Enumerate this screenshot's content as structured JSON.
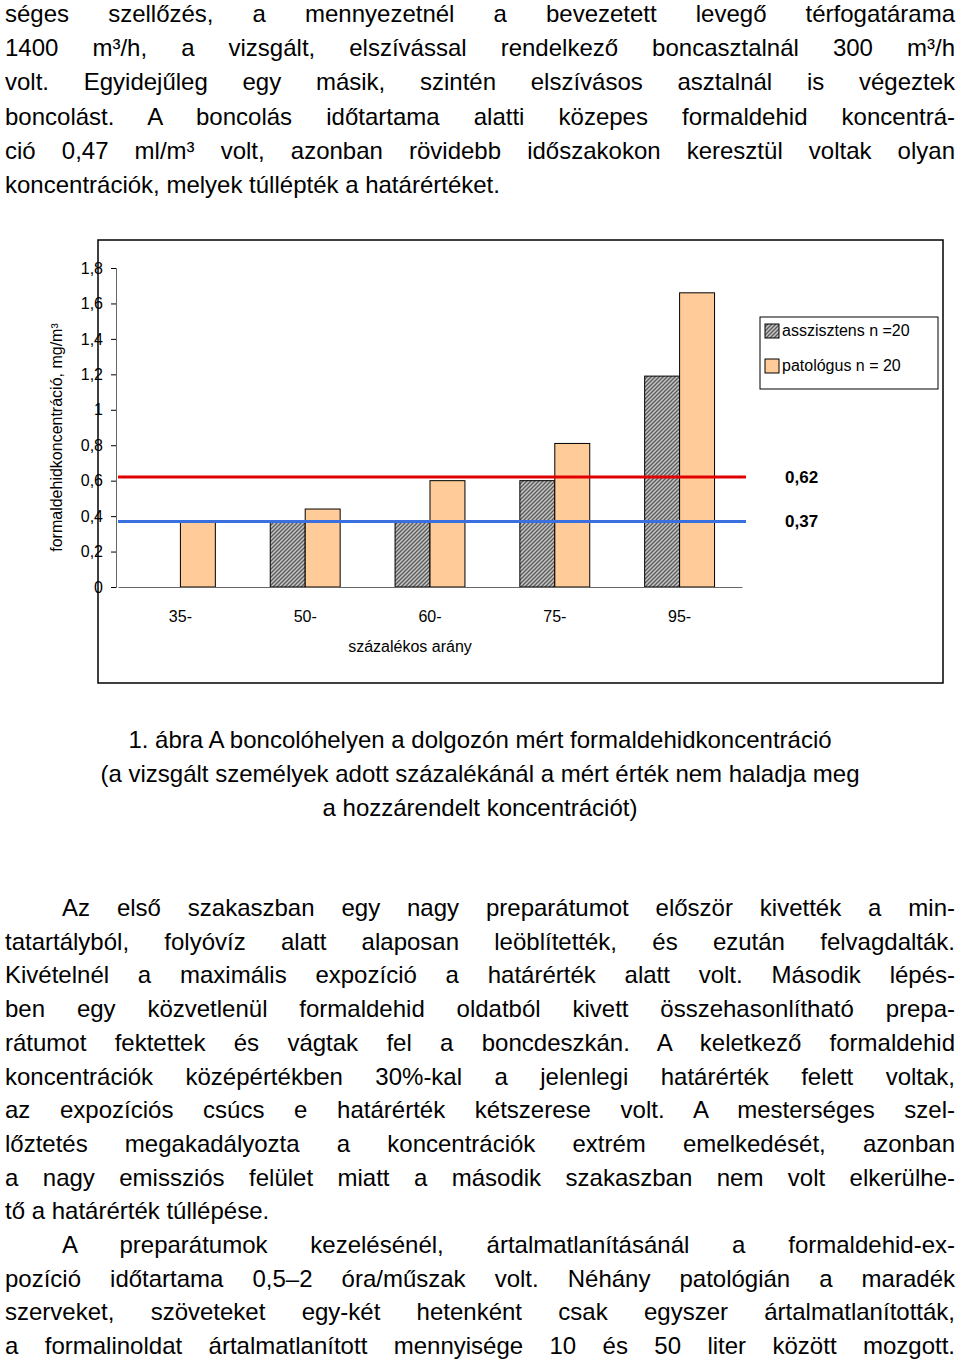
{
  "text_top": [
    "séges szellőzés, a mennyezetnél a bevezetett levegő térfogatárama",
    "1400 m³/h, a vizsgált, elszívással rendelkező boncasztalnál 300 m³/h",
    "volt. Egyidejűleg egy másik, szintén elszívásos asztalnál is végeztek",
    "boncolást. A boncolás időtartama alatti közepes formaldehid koncentrá-",
    "ció 0,47 ml/m³ volt, azonban rövidebb időszakokon keresztül voltak olyan",
    "koncentrációk, melyek túllépték a határértéket."
  ],
  "chart_data": {
    "type": "bar",
    "categories": [
      "35-",
      "50-",
      "60-",
      "75-",
      "95-"
    ],
    "series": [
      {
        "name": "asszisztens n =20",
        "color": "#808080",
        "values": [
          null,
          0.37,
          0.37,
          0.6,
          1.19
        ]
      },
      {
        "name": "patológus n = 20",
        "color": "#ffcc99",
        "values": [
          0.37,
          0.44,
          0.6,
          0.81,
          1.66
        ]
      }
    ],
    "x_label": "százalékos arány",
    "y_label": "formaldehidkoncentráció, mg/m³",
    "ylim": [
      0,
      1.8
    ],
    "yticks": [
      0,
      {
        "value": 0.2,
        "label": "0,2"
      },
      {
        "value": 0.4,
        "label": "0,4"
      },
      {
        "value": 0.6,
        "label": "0,6"
      },
      {
        "value": 0.8,
        "label": "0,8"
      },
      1,
      {
        "value": 1.2,
        "label": "1,2"
      },
      {
        "value": 1.4,
        "label": "1,4"
      },
      {
        "value": 1.6,
        "label": "1,6"
      },
      {
        "value": 1.8,
        "label": "1,8"
      }
    ],
    "thresholds": [
      {
        "value": 0.62,
        "label": "0,62",
        "color": "#e00000"
      },
      {
        "value": 0.37,
        "label": "0,37",
        "color": "#3a6fe0"
      }
    ],
    "legend": "right",
    "grid": false
  },
  "caption": [
    "1. ábra A boncolóhelyen a dolgozón mért formaldehidkoncentráció",
    "(a vizsgált személyek adott százalékánál a mért érték nem haladja meg",
    "a hozzárendelt koncentrációt)"
  ],
  "paragraphs": [
    [
      "Az első szakaszban egy nagy preparátumot először kivették a min-",
      "tatartályból, folyóvíz alatt alaposan leöblítették, és ezután felvagdalták.",
      "Kivételnél a maximális expozíció a határérték alatt volt. Második lépés-",
      "ben egy közvetlenül formaldehid oldatból kivett összehasonlítható prepa-",
      "rátumot fektettek és vágtak fel a boncdeszkán. A keletkező formaldehid",
      "koncentrációk középértékben 30%-kal a jelenlegi határérték felett voltak,",
      "az expozíciós csúcs e határérték kétszerese volt. A mesterséges szel-",
      "lőztetés megakadályozta a koncentrációk extrém emelkedését, azonban",
      "a nagy emissziós felület miatt a második szakaszban nem volt elkerülhe-",
      "tő a határérték túllépése."
    ],
    [
      "A preparátumok kezelésénél, ártalmatlanításánál a formaldehid-ex-",
      "pozíció időtartama 0,5–2 óra/műszak volt. Néhány patológián a maradék",
      "szerveket, szöveteket egy-két hetenként csak egyszer ártalmatlanították,",
      "a formalinoldat ártalmatlanított mennyisége 10 és 50 liter között mozgott."
    ]
  ]
}
